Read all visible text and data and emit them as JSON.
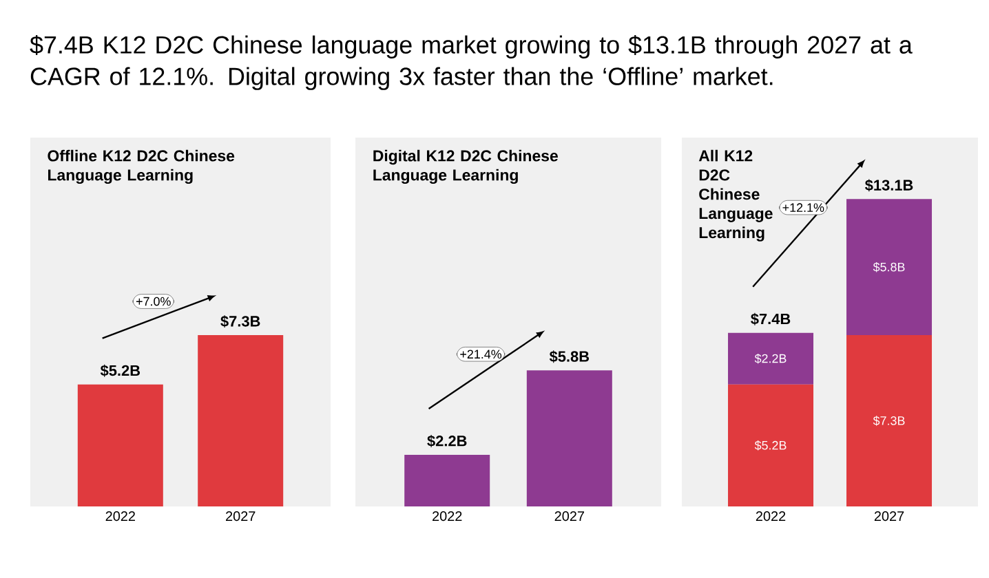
{
  "chart_data": [
    {
      "type": "bar",
      "title": "Offline K12 D2C Chinese Language Learning",
      "categories": [
        "2022",
        "2027"
      ],
      "values": [
        5.2,
        7.3
      ],
      "color": "#e03a3e",
      "value_labels": [
        "$5.2B",
        "$7.3B"
      ],
      "tick_labels": "x",
      "annotations": [
        "$7.4B K12 D2C Chinese language market growing to $13.1B through 2027 at a CAGR of 12.1%. Digital growing 3x faster than the ‘Offline’ market.",
        "+7.0%"
      ]
    },
    {
      "type": "bar",
      "title": "Digital K12 D2C Chinese Language Learning",
      "categories": [
        "2022",
        "2027"
      ],
      "values": [
        2.2,
        5.8
      ],
      "color": "#8e3a91",
      "value_labels": [
        "$2.2B",
        "$5.8B"
      ],
      "tick_labels": "x",
      "annotations": [
        "+21.4%"
      ]
    },
    {
      "type": "bar",
      "title": "All K12 D2C Chinese Language Learning",
      "categories": [
        "2022",
        "2027"
      ],
      "stacked": true,
      "tick_labels": "x",
      "totals": [
        "$7.4B",
        "$13.1B"
      ],
      "annotations": [
        "+12.1%"
      ],
      "series": [
        {
          "color": "#e03a3e",
          "values": [
            5.2,
            7.3
          ],
          "value_labels": [
            "$5.2B",
            "$7.3B"
          ]
        },
        {
          "color": "#8e3a91",
          "values": [
            2.2,
            5.8
          ],
          "value_labels": [
            "$2.2B",
            "$5.8B"
          ]
        }
      ]
    }
  ]
}
